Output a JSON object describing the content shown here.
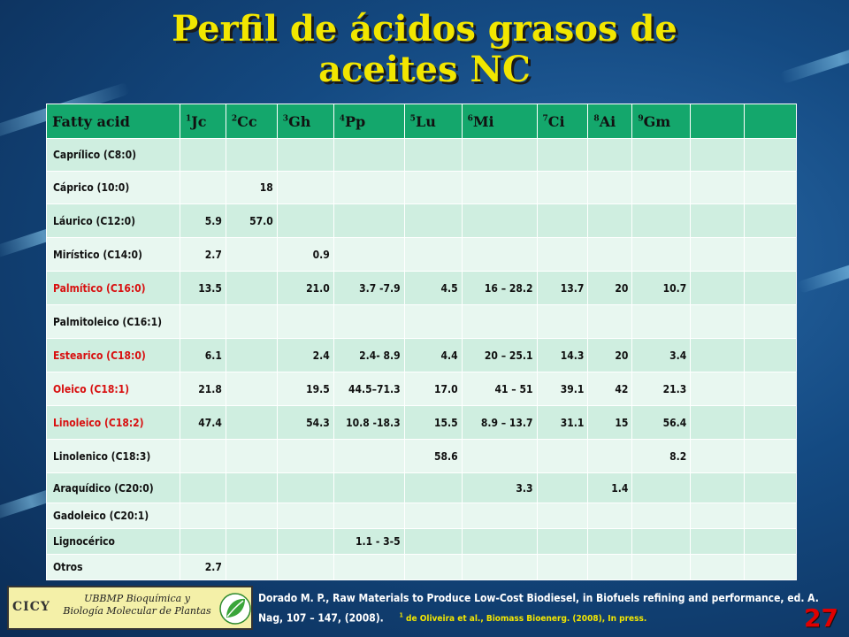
{
  "title_line1": "Perfil de ácidos grasos de",
  "title_line2": "aceites NC",
  "table": {
    "headers": [
      {
        "sup": "",
        "label": "Fatty acid"
      },
      {
        "sup": "1",
        "label": "Jc"
      },
      {
        "sup": "2",
        "label": "Cc"
      },
      {
        "sup": "3",
        "label": "Gh"
      },
      {
        "sup": "4",
        "label": "Pp"
      },
      {
        "sup": "5",
        "label": "Lu"
      },
      {
        "sup": "6",
        "label": "Mi"
      },
      {
        "sup": "7",
        "label": "Ci"
      },
      {
        "sup": "8",
        "label": "Ai"
      },
      {
        "sup": "9",
        "label": "Gm"
      },
      {
        "sup": "",
        "label": ""
      },
      {
        "sup": "",
        "label": ""
      }
    ],
    "rows": [
      {
        "name": "Caprílico (C8:0)",
        "highlight": false,
        "cells": [
          "",
          "",
          "",
          "",
          "",
          "",
          "",
          "",
          "",
          "",
          ""
        ]
      },
      {
        "name": "Cáprico (10:0)",
        "highlight": false,
        "cells": [
          "",
          "18",
          "",
          "",
          "",
          "",
          "",
          "",
          "",
          "",
          ""
        ]
      },
      {
        "name": "Láurico (C12:0)",
        "highlight": false,
        "cells": [
          "5.9",
          "57.0",
          "",
          "",
          "",
          "",
          "",
          "",
          "",
          "",
          ""
        ]
      },
      {
        "name": "Mirístico (C14:0)",
        "highlight": false,
        "cells": [
          "2.7",
          "",
          "0.9",
          "",
          "",
          "",
          "",
          "",
          "",
          "",
          ""
        ]
      },
      {
        "name": "Palmítico (C16:0)",
        "highlight": true,
        "cells": [
          "13.5",
          "",
          "21.0",
          "3.7 -7.9",
          "4.5",
          "16 – 28.2",
          "13.7",
          "20",
          "10.7",
          "",
          ""
        ]
      },
      {
        "name": "Palmitoleico (C16:1)",
        "highlight": false,
        "cells": [
          "",
          "",
          "",
          "",
          "",
          "",
          "",
          "",
          "",
          "",
          ""
        ]
      },
      {
        "name": "Estearico (C18:0)",
        "highlight": true,
        "cells": [
          "6.1",
          "",
          "2.4",
          "2.4- 8.9",
          "4.4",
          "20 – 25.1",
          "14.3",
          "20",
          "3.4",
          "",
          ""
        ]
      },
      {
        "name": "Oleico (C18:1)",
        "highlight": true,
        "cells": [
          "21.8",
          "",
          "19.5",
          "44.5–71.3",
          "17.0",
          "41 – 51",
          "39.1",
          "42",
          "21.3",
          "",
          ""
        ]
      },
      {
        "name": "Linoleico (C18:2)",
        "highlight": true,
        "cells": [
          "47.4",
          "",
          "54.3",
          "10.8 -18.3",
          "15.5",
          "8.9 – 13.7",
          "31.1",
          "15",
          "56.4",
          "",
          ""
        ]
      },
      {
        "name": "Linolenico (C18:3)",
        "highlight": false,
        "cells": [
          "",
          "",
          "",
          "",
          "58.6",
          "",
          "",
          "",
          "8.2",
          "",
          ""
        ]
      },
      {
        "name": "Araquídico (C20:0)",
        "highlight": false,
        "cells": [
          "",
          "",
          "",
          "",
          "",
          "3.3",
          "",
          "1.4",
          "",
          "",
          ""
        ]
      },
      {
        "name": "Gadoleico (C20:1)",
        "highlight": false,
        "cells": [
          "",
          "",
          "",
          "",
          "",
          "",
          "",
          "",
          "",
          "",
          ""
        ]
      },
      {
        "name": "Lignocérico",
        "highlight": false,
        "cells": [
          "",
          "",
          "",
          "1.1 - 3-5",
          "",
          "",
          "",
          "",
          "",
          "",
          ""
        ]
      },
      {
        "name": "Otros",
        "highlight": false,
        "cells": [
          "2.7",
          "",
          "",
          "",
          "",
          "",
          "",
          "",
          "",
          "",
          ""
        ]
      }
    ]
  },
  "logo": {
    "cicy": "CICY",
    "line1": "UBBMP Bioquímica y",
    "line2": "Biología Molecular de Plantas"
  },
  "reference": {
    "main": "Dorado M. P., Raw Materials to Produce Low-Cost Biodiesel, in Biofuels refining and performance, ed. A. Nag, 107 – 147, (2008).",
    "note_sup": "1",
    "note": " de Oliveira et al., Biomass Bioenerg. (2008), In press."
  },
  "page_number": "27",
  "colors": {
    "title": "#f2e600",
    "header_bg": "#14a76c",
    "highlight_text": "#d81010",
    "page_number": "#e00000"
  }
}
